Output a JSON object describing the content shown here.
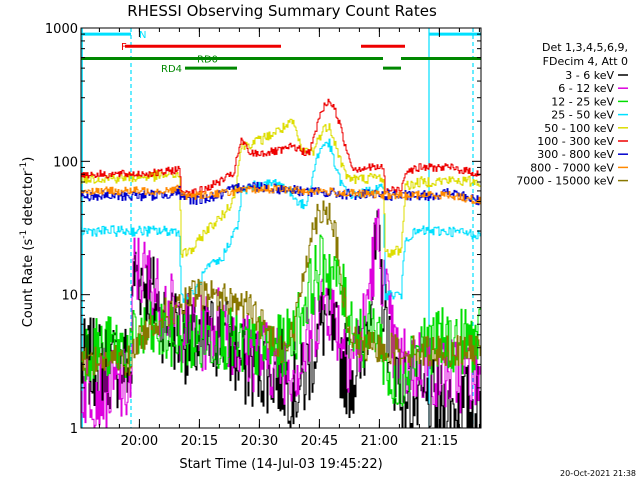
{
  "chart_data": {
    "type": "line",
    "title": "RHESSI Observing Summary Count Rates",
    "xlabel": "Start Time (14-Jul-03 19:45:22)",
    "ylabel_main": "Count Rate (s",
    "ylabel_sup": "-1",
    "ylabel_mid": " detector",
    "ylabel_sup2": "-1",
    "ylabel_end": ")",
    "footer": "20-Oct-2021 21:38",
    "x_range_min": [
      0,
      100
    ],
    "y_scale": "log",
    "y_range": [
      1,
      1000
    ],
    "y_ticks": [
      {
        "value": 1,
        "label": "1"
      },
      {
        "value": 10,
        "label": "10"
      },
      {
        "value": 100,
        "label": "100"
      },
      {
        "value": 1000,
        "label": "1000"
      }
    ],
    "x_ticks": [
      {
        "min": 14.6,
        "label": "20:00"
      },
      {
        "min": 29.6,
        "label": "20:15"
      },
      {
        "min": 44.6,
        "label": "20:30"
      },
      {
        "min": 59.6,
        "label": "20:45"
      },
      {
        "min": 74.6,
        "label": "21:00"
      },
      {
        "min": 89.6,
        "label": "21:15"
      }
    ],
    "legend_header": [
      "Det 1,3,4,5,6,9,",
      "FDecim 4, Att 0"
    ],
    "flags": [
      {
        "label": "N",
        "color": "#00e0ff",
        "y": 900,
        "segments": [
          [
            0,
            12.5
          ],
          [
            87,
            100
          ]
        ],
        "label_at": 14.5
      },
      {
        "label": "F",
        "color": "#ee0000",
        "y": 730,
        "segments": [
          [
            11,
            50
          ],
          [
            70,
            81
          ]
        ],
        "label_at": 10
      },
      {
        "label": "RD0",
        "color": "#008800",
        "y": 590,
        "segments": [
          [
            0,
            75.5
          ],
          [
            80,
            100
          ]
        ],
        "label_at": 29
      },
      {
        "label": "RD4",
        "color": "#008800",
        "y": 500,
        "segments": [
          [
            26,
            39
          ],
          [
            75.5,
            80
          ]
        ],
        "label_at": 20
      }
    ],
    "vlines": [
      {
        "min": 12.5,
        "color": "#00e0ff",
        "dash": "4,3"
      },
      {
        "min": 87,
        "color": "#00e0ff",
        "dash": ""
      },
      {
        "min": 98,
        "color": "#00e0ff",
        "dash": "4,3"
      },
      {
        "min": 0.3,
        "color": "#00e0ff",
        "dash": ""
      }
    ],
    "series": [
      {
        "name": "3 - 6 keV",
        "color": "#000000",
        "noise": 0.35,
        "points": [
          [
            0,
            3
          ],
          [
            12.5,
            3
          ],
          [
            13,
            15
          ],
          [
            16,
            13
          ],
          [
            20,
            7
          ],
          [
            25,
            5
          ],
          [
            30,
            4
          ],
          [
            35,
            5.5
          ],
          [
            40,
            3
          ],
          [
            45,
            3
          ],
          [
            50,
            2.5
          ],
          [
            55,
            2
          ],
          [
            58,
            4
          ],
          [
            61,
            7
          ],
          [
            64,
            4
          ],
          [
            67,
            2.5
          ],
          [
            70,
            3
          ],
          [
            72,
            9
          ],
          [
            74,
            22
          ],
          [
            76,
            7
          ],
          [
            78,
            3
          ],
          [
            80,
            2
          ],
          [
            85,
            1.5
          ],
          [
            92,
            1.4
          ],
          [
            100,
            1.4
          ]
        ]
      },
      {
        "name": "6 - 12 keV",
        "color": "#dd00dd",
        "noise": 0.3,
        "points": [
          [
            0,
            2
          ],
          [
            12.5,
            2
          ],
          [
            13,
            16
          ],
          [
            16,
            14
          ],
          [
            20,
            9
          ],
          [
            25,
            6
          ],
          [
            30,
            5
          ],
          [
            35,
            6.5
          ],
          [
            40,
            4
          ],
          [
            45,
            3.5
          ],
          [
            50,
            3
          ],
          [
            55,
            3
          ],
          [
            58,
            6
          ],
          [
            61,
            10
          ],
          [
            64,
            6
          ],
          [
            67,
            3.5
          ],
          [
            70,
            4.5
          ],
          [
            72,
            12
          ],
          [
            74,
            28
          ],
          [
            76,
            10
          ],
          [
            78,
            4
          ],
          [
            80,
            3
          ],
          [
            85,
            3
          ],
          [
            92,
            2.5
          ],
          [
            100,
            2.5
          ]
        ]
      },
      {
        "name": "12 - 25 keV",
        "color": "#00dd00",
        "noise": 0.25,
        "points": [
          [
            0,
            4
          ],
          [
            12.5,
            4
          ],
          [
            14,
            5
          ],
          [
            20,
            5
          ],
          [
            25,
            4.5
          ],
          [
            30,
            4.5
          ],
          [
            35,
            5
          ],
          [
            40,
            4
          ],
          [
            45,
            4
          ],
          [
            50,
            4
          ],
          [
            53,
            5
          ],
          [
            56,
            9
          ],
          [
            59,
            15
          ],
          [
            61,
            18
          ],
          [
            64,
            13
          ],
          [
            67,
            7
          ],
          [
            70,
            5
          ],
          [
            72,
            5
          ],
          [
            74,
            6
          ],
          [
            76,
            3
          ],
          [
            79,
            1.5
          ],
          [
            81,
            3
          ],
          [
            85,
            4.5
          ],
          [
            92,
            4.5
          ],
          [
            100,
            4.5
          ]
        ]
      },
      {
        "name": "25 - 50 keV",
        "color": "#00e0ff",
        "noise": 0.04,
        "points": [
          [
            0,
            30
          ],
          [
            10,
            30
          ],
          [
            20,
            30
          ],
          [
            24.5,
            30
          ],
          [
            25,
            9.5
          ],
          [
            28,
            10
          ],
          [
            31,
            15
          ],
          [
            33,
            17
          ],
          [
            35,
            18
          ],
          [
            37,
            25
          ],
          [
            39,
            32
          ],
          [
            40,
            55
          ],
          [
            42,
            65
          ],
          [
            45,
            65
          ],
          [
            49,
            70
          ],
          [
            51,
            63
          ],
          [
            53,
            55
          ],
          [
            56,
            45
          ],
          [
            59,
            110
          ],
          [
            61,
            140
          ],
          [
            62,
            135
          ],
          [
            64,
            80
          ],
          [
            66,
            60
          ],
          [
            68,
            56
          ],
          [
            70,
            57
          ],
          [
            72,
            60
          ],
          [
            75.5,
            62
          ],
          [
            76,
            10
          ],
          [
            80,
            10
          ],
          [
            81,
            27
          ],
          [
            85,
            30
          ],
          [
            92,
            30
          ],
          [
            100,
            28
          ]
        ]
      },
      {
        "name": "50 - 100 keV",
        "color": "#dddd00",
        "noise": 0.04,
        "points": [
          [
            0,
            75
          ],
          [
            10,
            75
          ],
          [
            20,
            78
          ],
          [
            24.5,
            80
          ],
          [
            25,
            20
          ],
          [
            28,
            22
          ],
          [
            31,
            30
          ],
          [
            33,
            34
          ],
          [
            35,
            38
          ],
          [
            38,
            52
          ],
          [
            40,
            130
          ],
          [
            42,
            135
          ],
          [
            45,
            145
          ],
          [
            50,
            175
          ],
          [
            53,
            195
          ],
          [
            55,
            120
          ],
          [
            58,
            120
          ],
          [
            60,
            165
          ],
          [
            62,
            190
          ],
          [
            64,
            120
          ],
          [
            66,
            80
          ],
          [
            68,
            73
          ],
          [
            72,
            75
          ],
          [
            75.5,
            76
          ],
          [
            76,
            20
          ],
          [
            80,
            22
          ],
          [
            81,
            65
          ],
          [
            85,
            70
          ],
          [
            92,
            72
          ],
          [
            100,
            70
          ]
        ]
      },
      {
        "name": "100 - 300 keV",
        "color": "#ee0000",
        "noise": 0.03,
        "points": [
          [
            0,
            80
          ],
          [
            10,
            80
          ],
          [
            20,
            82
          ],
          [
            24.5,
            88
          ],
          [
            25,
            60
          ],
          [
            28,
            58
          ],
          [
            31,
            62
          ],
          [
            35,
            72
          ],
          [
            38,
            80
          ],
          [
            40,
            145
          ],
          [
            42,
            115
          ],
          [
            45,
            115
          ],
          [
            50,
            120
          ],
          [
            53,
            130
          ],
          [
            55,
            120
          ],
          [
            57,
            115
          ],
          [
            60,
            240
          ],
          [
            62,
            290
          ],
          [
            64,
            220
          ],
          [
            66,
            130
          ],
          [
            68,
            88
          ],
          [
            72,
            90
          ],
          [
            75.5,
            90
          ],
          [
            76,
            60
          ],
          [
            80,
            62
          ],
          [
            81,
            85
          ],
          [
            85,
            90
          ],
          [
            92,
            90
          ],
          [
            100,
            80
          ]
        ]
      },
      {
        "name": "300 - 800 keV",
        "color": "#0000cc",
        "noise": 0.04,
        "points": [
          [
            0,
            55
          ],
          [
            10,
            55
          ],
          [
            20,
            56
          ],
          [
            24.5,
            60
          ],
          [
            25,
            52
          ],
          [
            30,
            52
          ],
          [
            35,
            56
          ],
          [
            40,
            65
          ],
          [
            45,
            65
          ],
          [
            50,
            62
          ],
          [
            55,
            60
          ],
          [
            60,
            58
          ],
          [
            65,
            57
          ],
          [
            70,
            56
          ],
          [
            75,
            56
          ],
          [
            80,
            55
          ],
          [
            85,
            55
          ],
          [
            92,
            58
          ],
          [
            100,
            50
          ]
        ]
      },
      {
        "name": "800 - 7000 keV",
        "color": "#ff8800",
        "noise": 0.03,
        "points": [
          [
            0,
            60
          ],
          [
            10,
            60
          ],
          [
            20,
            60
          ],
          [
            24.5,
            63
          ],
          [
            25,
            55
          ],
          [
            30,
            56
          ],
          [
            35,
            58
          ],
          [
            40,
            60
          ],
          [
            45,
            62
          ],
          [
            50,
            62
          ],
          [
            55,
            60
          ],
          [
            60,
            60
          ],
          [
            65,
            58
          ],
          [
            70,
            57
          ],
          [
            75,
            56
          ],
          [
            80,
            55
          ],
          [
            85,
            56
          ],
          [
            92,
            56
          ],
          [
            100,
            50
          ]
        ]
      },
      {
        "name": "7000 - 15000 keV",
        "color": "#887700",
        "noise": 0.12,
        "points": [
          [
            0,
            3.2
          ],
          [
            10,
            3.2
          ],
          [
            12.5,
            3.2
          ],
          [
            14,
            4.5
          ],
          [
            20,
            7
          ],
          [
            25,
            8
          ],
          [
            28,
            10
          ],
          [
            33,
            10
          ],
          [
            38,
            9
          ],
          [
            42,
            8
          ],
          [
            47,
            5
          ],
          [
            50,
            4
          ],
          [
            53,
            5
          ],
          [
            56,
            18
          ],
          [
            59,
            40
          ],
          [
            61,
            46
          ],
          [
            63,
            35
          ],
          [
            65,
            12
          ],
          [
            67,
            5
          ],
          [
            70,
            4
          ],
          [
            73,
            4
          ],
          [
            76,
            4
          ],
          [
            80,
            3.8
          ],
          [
            85,
            3.8
          ],
          [
            92,
            3.8
          ],
          [
            100,
            3.8
          ]
        ]
      }
    ]
  }
}
